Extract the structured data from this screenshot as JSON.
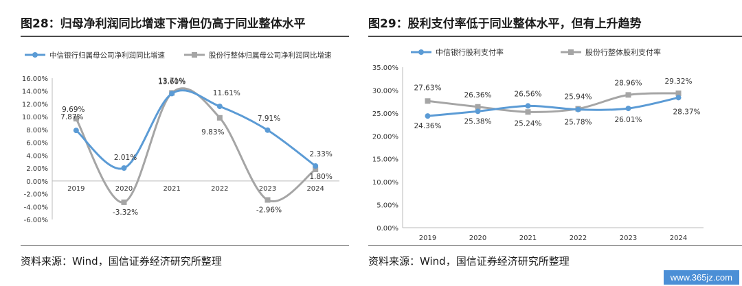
{
  "left": {
    "title": "图28：归母净利润同比增速下滑但仍高于同业整体水平",
    "source": "资料来源：Wind，国信证券经济研究所整理"
  },
  "right": {
    "title": "图29：股利支付率低于同业整体水平，但有上升趋势",
    "source": "资料来源：Wind，国信证券经济研究所整理"
  },
  "watermark": "www.365jz.com",
  "chart_data": [
    {
      "type": "line",
      "categories": [
        "2019",
        "2020",
        "2021",
        "2022",
        "2023",
        "2024"
      ],
      "series": [
        {
          "name": "中信银行归属母公司净利润同比增速",
          "color": "#5b9bd5",
          "values": [
            7.87,
            2.01,
            13.6,
            11.61,
            7.91,
            2.33
          ],
          "labels": [
            "7.87%",
            "2.01%",
            "13.60%",
            "11.61%",
            "7.91%",
            "2.33%"
          ]
        },
        {
          "name": "股份行整体归属母公司净利润同比增速",
          "color": "#a5a5a5",
          "values": [
            9.69,
            -3.32,
            13.71,
            9.83,
            -2.96,
            1.8
          ],
          "labels": [
            "9.69%",
            "-3.32%",
            "13.71%",
            "9.83%",
            "-2.96%",
            "1.80%"
          ]
        }
      ],
      "ylim": [
        -6,
        16
      ],
      "yticks": [
        "-6.00%",
        "-4.00%",
        "-2.00%",
        "0.00%",
        "2.00%",
        "4.00%",
        "6.00%",
        "8.00%",
        "10.00%",
        "12.00%",
        "14.00%",
        "16.00%"
      ],
      "smooth": true,
      "legend": "top-left",
      "grid": false
    },
    {
      "type": "line",
      "categories": [
        "2019",
        "2020",
        "2021",
        "2022",
        "2023",
        "2024"
      ],
      "series": [
        {
          "name": "中信银行股利支付率",
          "color": "#5b9bd5",
          "values": [
            24.36,
            25.38,
            26.56,
            25.78,
            26.01,
            28.37
          ],
          "labels": [
            "24.36%",
            "25.38%",
            "26.56%",
            "25.78%",
            "26.01%",
            "28.37%"
          ]
        },
        {
          "name": "股份行整体股利支付率",
          "color": "#a5a5a5",
          "values": [
            27.63,
            26.36,
            25.24,
            25.94,
            28.96,
            29.32
          ],
          "labels": [
            "27.63%",
            "26.36%",
            "25.24%",
            "25.94%",
            "28.96%",
            "29.32%"
          ]
        }
      ],
      "ylim": [
        0,
        35
      ],
      "yticks": [
        "0.00%",
        "5.00%",
        "10.00%",
        "15.00%",
        "20.00%",
        "25.00%",
        "30.00%",
        "35.00%"
      ],
      "smooth": true,
      "legend": "top-left",
      "grid": false
    }
  ]
}
